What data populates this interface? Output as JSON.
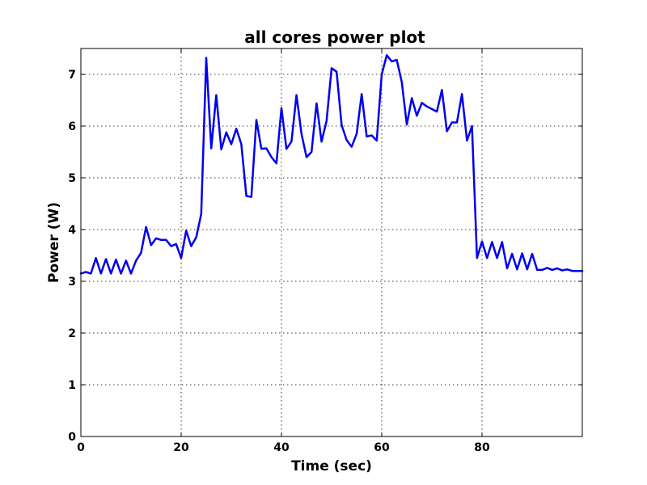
{
  "chart_data": {
    "type": "line",
    "title": "all cores power plot",
    "xlabel": "Time (sec)",
    "ylabel": "Power (W)",
    "xlim": [
      0,
      100
    ],
    "ylim": [
      0,
      7.5
    ],
    "xticks": [
      0,
      20,
      40,
      60,
      80
    ],
    "yticks": [
      0,
      1,
      2,
      3,
      4,
      5,
      6,
      7
    ],
    "grid": true,
    "series": [
      {
        "color": "#0000ee",
        "x": [
          0,
          1,
          2,
          3,
          4,
          5,
          6,
          7,
          8,
          9,
          10,
          11,
          12,
          13,
          14,
          15,
          16,
          17,
          18,
          19,
          20,
          21,
          22,
          23,
          24,
          25,
          26,
          27,
          28,
          29,
          30,
          31,
          32,
          33,
          34,
          35,
          36,
          37,
          38,
          39,
          40,
          41,
          42,
          43,
          44,
          45,
          46,
          47,
          48,
          49,
          50,
          51,
          52,
          53,
          54,
          55,
          56,
          57,
          58,
          59,
          60,
          61,
          62,
          63,
          64,
          65,
          66,
          67,
          68,
          69,
          70,
          71,
          72,
          73,
          74,
          75,
          76,
          77,
          78,
          79,
          80,
          81,
          82,
          83,
          84,
          85,
          86,
          87,
          88,
          89,
          90,
          91,
          92,
          93,
          94,
          95,
          96,
          97,
          98,
          99,
          100
        ],
        "y": [
          3.15,
          3.18,
          3.15,
          3.45,
          3.15,
          3.43,
          3.15,
          3.42,
          3.15,
          3.4,
          3.15,
          3.4,
          3.55,
          4.05,
          3.7,
          3.83,
          3.8,
          3.8,
          3.68,
          3.72,
          3.45,
          3.98,
          3.68,
          3.85,
          4.3,
          7.32,
          5.57,
          6.6,
          5.55,
          5.88,
          5.65,
          5.95,
          5.65,
          4.65,
          4.63,
          6.12,
          5.56,
          5.57,
          5.4,
          5.28,
          6.35,
          5.56,
          5.7,
          6.6,
          5.85,
          5.4,
          5.5,
          6.44,
          5.7,
          6.1,
          7.12,
          7.05,
          6.02,
          5.73,
          5.6,
          5.85,
          6.62,
          5.8,
          5.82,
          5.72,
          7.0,
          7.37,
          7.25,
          7.28,
          6.85,
          6.03,
          6.54,
          6.2,
          6.45,
          6.38,
          6.33,
          6.28,
          6.7,
          5.9,
          6.07,
          6.07,
          6.62,
          5.72,
          6.0,
          3.45,
          3.77,
          3.45,
          3.76,
          3.45,
          3.76,
          3.25,
          3.53,
          3.23,
          3.54,
          3.23,
          3.53,
          3.22,
          3.22,
          3.26,
          3.22,
          3.25,
          3.21,
          3.23,
          3.2,
          3.2,
          3.2
        ]
      }
    ]
  }
}
